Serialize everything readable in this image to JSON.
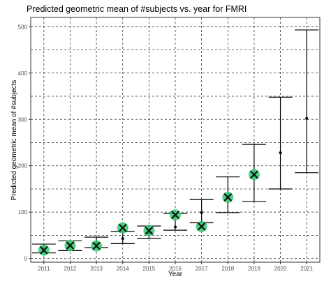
{
  "chart_data": {
    "type": "scatter",
    "title": "Predicted geometric mean of #subjects vs. year for FMRI",
    "xlabel": "Year",
    "ylabel": "Predicted geometric mean of #subjects",
    "categories": [
      "2011",
      "2012",
      "2013",
      "2014",
      "2015",
      "2016",
      "2017",
      "2018",
      "2019",
      "2020",
      "2021"
    ],
    "ylim": [
      -8,
      520
    ],
    "yticks": [
      0,
      100,
      200,
      300,
      400,
      500
    ],
    "yticks_minor": [
      50,
      150,
      250,
      350,
      450
    ],
    "grid": true,
    "series": [
      {
        "type": "errorbar",
        "mean": [
          21,
          27,
          34,
          43,
          54,
          68,
          99,
          135,
          180,
          228,
          302
        ],
        "lower": [
          12,
          17,
          23,
          32,
          43,
          61,
          77,
          99,
          123,
          150,
          185
        ],
        "upper": [
          31,
          38,
          46,
          58,
          70,
          97,
          127,
          176,
          246,
          348,
          493
        ]
      },
      {
        "type": "observed",
        "marker": "green circle with x",
        "color": "#2ecc71",
        "values": [
          18,
          28,
          27,
          66,
          60,
          94,
          69,
          132,
          181,
          null,
          null
        ]
      }
    ]
  }
}
